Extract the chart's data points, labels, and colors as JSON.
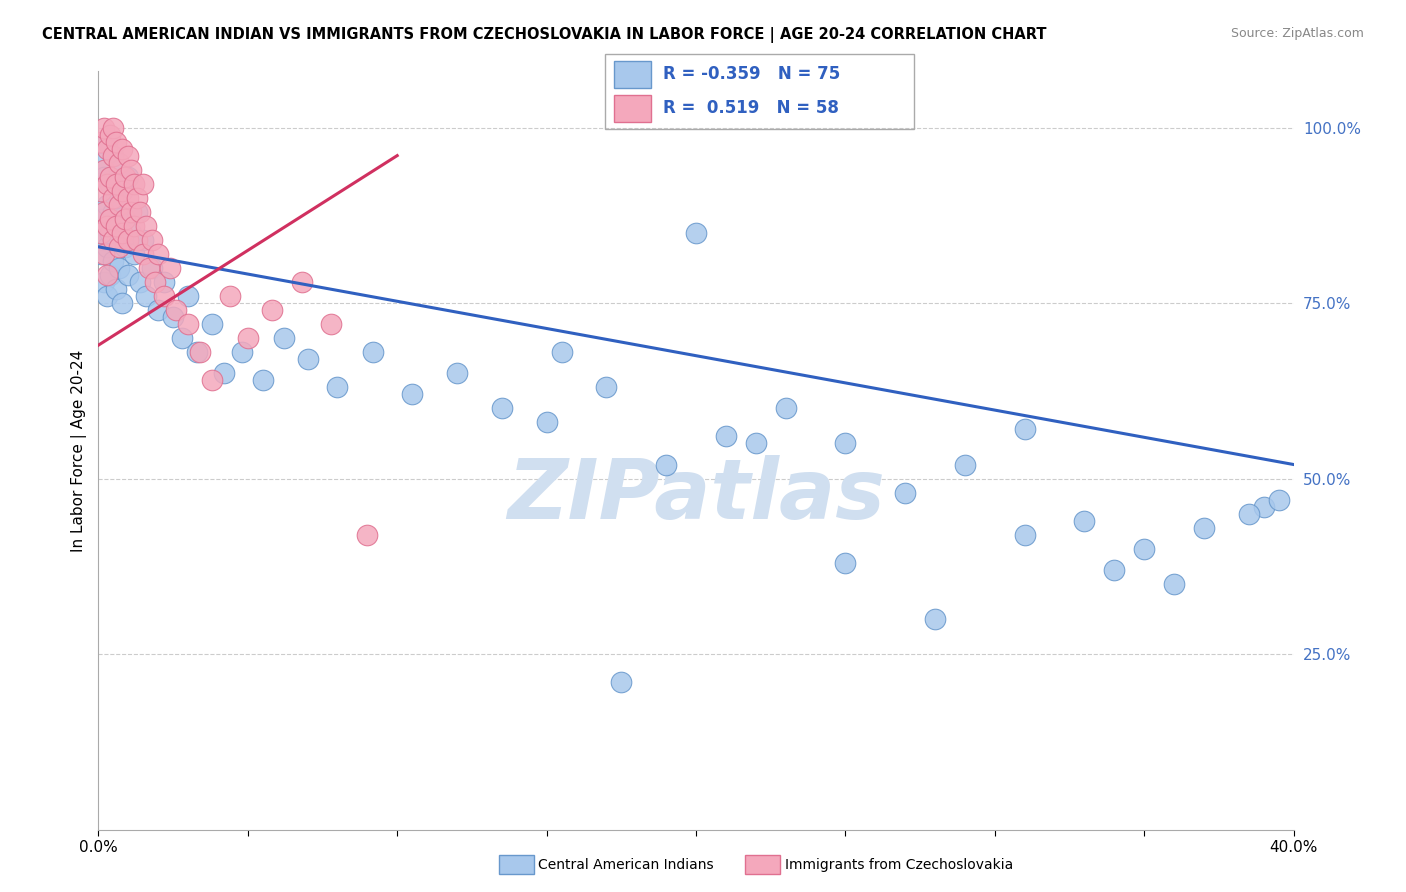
{
  "title": "CENTRAL AMERICAN INDIAN VS IMMIGRANTS FROM CZECHOSLOVAKIA IN LABOR FORCE | AGE 20-24 CORRELATION CHART",
  "source": "Source: ZipAtlas.com",
  "ylabel": "In Labor Force | Age 20-24",
  "xlim": [
    0.0,
    0.4
  ],
  "ylim": [
    0.0,
    1.08
  ],
  "R_blue": -0.359,
  "N_blue": 75,
  "R_pink": 0.519,
  "N_pink": 58,
  "legend_label_blue": "Central American Indians",
  "legend_label_pink": "Immigrants from Czechoslovakia",
  "blue_color": "#A8C8EC",
  "pink_color": "#F4A8BC",
  "blue_edge_color": "#6898CC",
  "pink_edge_color": "#E07090",
  "blue_line_color": "#3060C0",
  "pink_line_color": "#D03060",
  "watermark": "ZIPatlas",
  "watermark_color": "#D0DFF0",
  "blue_line_x0": 0.0,
  "blue_line_y0": 0.83,
  "blue_line_x1": 0.4,
  "blue_line_y1": 0.52,
  "pink_line_x0": 0.0,
  "pink_line_y0": 0.69,
  "pink_line_x1": 0.1,
  "pink_line_y1": 0.96,
  "blue_scatter_x": [
    0.001,
    0.001,
    0.001,
    0.002,
    0.002,
    0.002,
    0.003,
    0.003,
    0.003,
    0.003,
    0.004,
    0.004,
    0.004,
    0.005,
    0.005,
    0.005,
    0.006,
    0.006,
    0.007,
    0.007,
    0.007,
    0.008,
    0.008,
    0.009,
    0.009,
    0.01,
    0.01,
    0.011,
    0.012,
    0.013,
    0.014,
    0.015,
    0.016,
    0.018,
    0.02,
    0.022,
    0.025,
    0.028,
    0.03,
    0.033,
    0.038,
    0.042,
    0.048,
    0.055,
    0.062,
    0.07,
    0.08,
    0.092,
    0.105,
    0.12,
    0.135,
    0.15,
    0.17,
    0.19,
    0.21,
    0.23,
    0.25,
    0.27,
    0.29,
    0.31,
    0.33,
    0.35,
    0.37,
    0.39,
    0.2,
    0.155,
    0.25,
    0.31,
    0.36,
    0.395,
    0.175,
    0.22,
    0.28,
    0.34,
    0.385
  ],
  "blue_scatter_y": [
    0.95,
    0.87,
    0.82,
    0.93,
    0.84,
    0.78,
    0.98,
    0.89,
    0.83,
    0.76,
    0.92,
    0.85,
    0.79,
    0.96,
    0.88,
    0.81,
    0.9,
    0.77,
    0.86,
    0.94,
    0.8,
    0.91,
    0.75,
    0.87,
    0.83,
    0.93,
    0.79,
    0.85,
    0.82,
    0.88,
    0.78,
    0.84,
    0.76,
    0.8,
    0.74,
    0.78,
    0.73,
    0.7,
    0.76,
    0.68,
    0.72,
    0.65,
    0.68,
    0.64,
    0.7,
    0.67,
    0.63,
    0.68,
    0.62,
    0.65,
    0.6,
    0.58,
    0.63,
    0.52,
    0.56,
    0.6,
    0.55,
    0.48,
    0.52,
    0.57,
    0.44,
    0.4,
    0.43,
    0.46,
    0.85,
    0.68,
    0.38,
    0.42,
    0.35,
    0.47,
    0.21,
    0.55,
    0.3,
    0.37,
    0.45
  ],
  "pink_scatter_x": [
    0.001,
    0.001,
    0.001,
    0.002,
    0.002,
    0.002,
    0.002,
    0.003,
    0.003,
    0.003,
    0.003,
    0.004,
    0.004,
    0.004,
    0.005,
    0.005,
    0.005,
    0.005,
    0.006,
    0.006,
    0.006,
    0.007,
    0.007,
    0.007,
    0.008,
    0.008,
    0.008,
    0.009,
    0.009,
    0.01,
    0.01,
    0.01,
    0.011,
    0.011,
    0.012,
    0.012,
    0.013,
    0.013,
    0.014,
    0.015,
    0.015,
    0.016,
    0.017,
    0.018,
    0.019,
    0.02,
    0.022,
    0.024,
    0.026,
    0.03,
    0.034,
    0.038,
    0.044,
    0.05,
    0.058,
    0.068,
    0.078,
    0.09
  ],
  "pink_scatter_y": [
    0.98,
    0.91,
    0.85,
    1.0,
    0.94,
    0.88,
    0.82,
    0.97,
    0.92,
    0.86,
    0.79,
    0.99,
    0.93,
    0.87,
    1.0,
    0.96,
    0.9,
    0.84,
    0.98,
    0.92,
    0.86,
    0.95,
    0.89,
    0.83,
    0.97,
    0.91,
    0.85,
    0.93,
    0.87,
    0.96,
    0.9,
    0.84,
    0.94,
    0.88,
    0.92,
    0.86,
    0.9,
    0.84,
    0.88,
    0.92,
    0.82,
    0.86,
    0.8,
    0.84,
    0.78,
    0.82,
    0.76,
    0.8,
    0.74,
    0.72,
    0.68,
    0.64,
    0.76,
    0.7,
    0.74,
    0.78,
    0.72,
    0.42
  ]
}
